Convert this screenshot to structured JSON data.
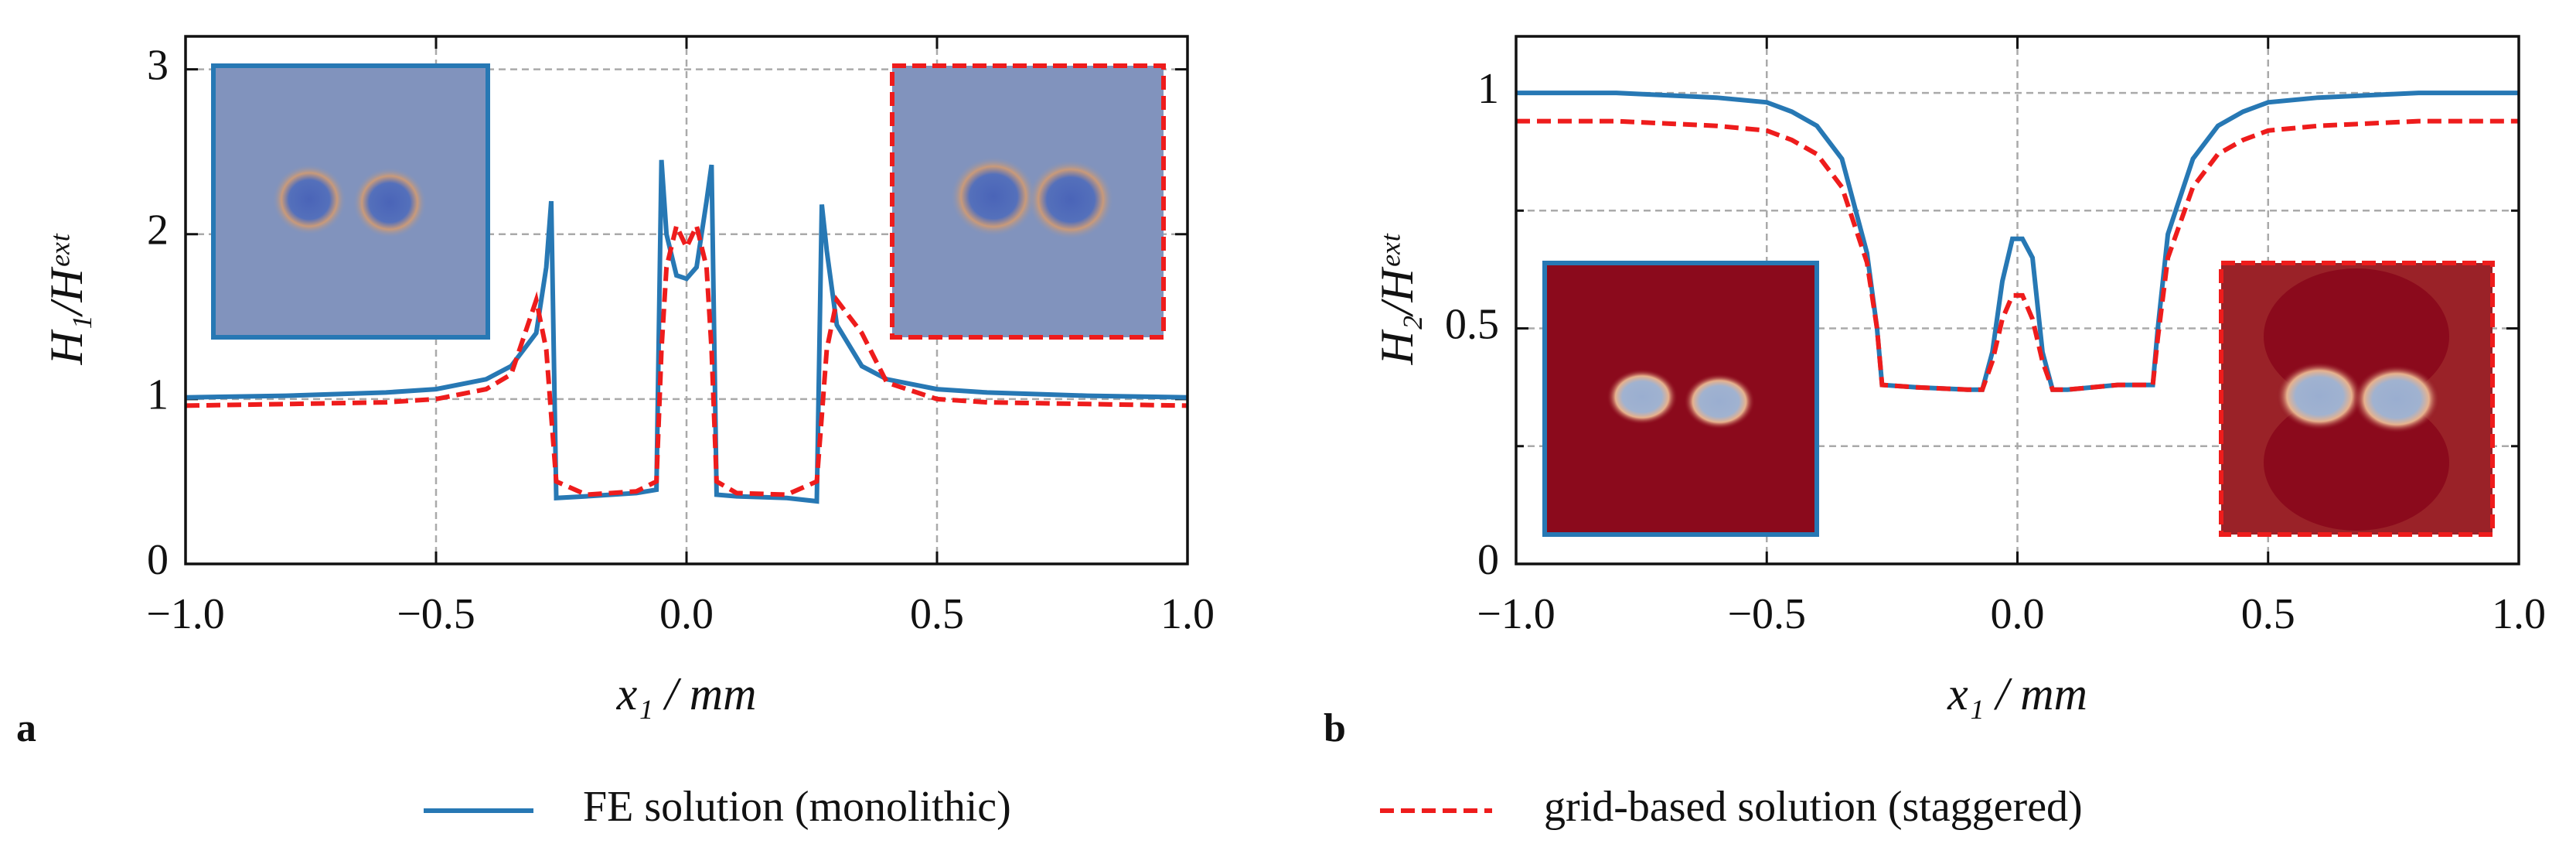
{
  "chart_data": [
    {
      "type": "line",
      "panel_label": "a",
      "x_label": "x₁ / mm",
      "y_label": "H₁/Hᵉˣᵗ",
      "x": [
        -1,
        -0.8,
        -0.6,
        -0.5,
        -0.4,
        -0.35,
        -0.3,
        -0.28,
        -0.27,
        -0.26,
        -0.2,
        -0.1,
        -0.06,
        -0.05,
        -0.04,
        -0.02,
        0,
        0.02,
        0.04,
        0.05,
        0.06,
        0.1,
        0.2,
        0.26,
        0.27,
        0.28,
        0.3,
        0.35,
        0.4,
        0.5,
        0.6,
        0.8,
        1
      ],
      "series": [
        {
          "name": "FE solution (monolithic)",
          "color": "#2778b4",
          "style": "solid",
          "values": [
            1.01,
            1.02,
            1.04,
            1.06,
            1.12,
            1.2,
            1.4,
            1.8,
            2.2,
            0.4,
            0.41,
            0.43,
            0.45,
            2.45,
            2.0,
            1.75,
            1.73,
            1.8,
            2.2,
            2.42,
            0.42,
            0.41,
            0.4,
            0.38,
            2.18,
            1.9,
            1.45,
            1.2,
            1.12,
            1.06,
            1.04,
            1.02,
            1.01
          ]
        },
        {
          "name": "grid-based solution (staggered)",
          "color": "#ee1c1c",
          "style": "dashed",
          "values": [
            0.96,
            0.97,
            0.98,
            1.0,
            1.06,
            1.15,
            1.6,
            1.3,
            0.9,
            0.5,
            0.42,
            0.44,
            0.5,
            1.3,
            1.8,
            2.05,
            1.92,
            2.05,
            1.8,
            1.3,
            0.5,
            0.43,
            0.42,
            0.5,
            0.9,
            1.3,
            1.6,
            1.4,
            1.1,
            1.0,
            0.98,
            0.97,
            0.96
          ]
        }
      ],
      "xlim": [
        -1,
        1
      ],
      "xticks": [
        {
          "value": -1,
          "label": "−1.0"
        },
        {
          "value": -0.5,
          "label": "−0.5"
        },
        {
          "value": 0,
          "label": "0.0"
        },
        {
          "value": 0.5,
          "label": "0.5"
        },
        {
          "value": 1,
          "label": "1.0"
        }
      ],
      "ylim": [
        0,
        3.2
      ],
      "yticks": [
        0,
        1,
        2,
        3
      ],
      "yminor": [],
      "grid": true
    },
    {
      "type": "line",
      "panel_label": "b",
      "x_label": "x₁ / mm",
      "y_label": "H₂/Hᵉˣᵗ",
      "x": [
        -1,
        -0.8,
        -0.6,
        -0.5,
        -0.45,
        -0.4,
        -0.35,
        -0.3,
        -0.28,
        -0.27,
        -0.2,
        -0.1,
        -0.07,
        -0.05,
        -0.03,
        -0.01,
        0.01,
        0.03,
        0.05,
        0.07,
        0.1,
        0.2,
        0.27,
        0.28,
        0.3,
        0.35,
        0.4,
        0.45,
        0.5,
        0.6,
        0.8,
        1
      ],
      "series": [
        {
          "color": "#2778b4",
          "style": "solid",
          "values": [
            1.0,
            1.0,
            0.99,
            0.98,
            0.96,
            0.93,
            0.86,
            0.66,
            0.5,
            0.38,
            0.375,
            0.37,
            0.37,
            0.45,
            0.6,
            0.69,
            0.69,
            0.65,
            0.45,
            0.37,
            0.37,
            0.38,
            0.38,
            0.5,
            0.7,
            0.86,
            0.93,
            0.96,
            0.98,
            0.99,
            1.0,
            1.0
          ]
        },
        {
          "color": "#ee1c1c",
          "style": "dashed",
          "values": [
            0.94,
            0.94,
            0.93,
            0.92,
            0.9,
            0.87,
            0.8,
            0.64,
            0.5,
            0.38,
            0.375,
            0.37,
            0.37,
            0.43,
            0.52,
            0.57,
            0.57,
            0.52,
            0.43,
            0.37,
            0.37,
            0.38,
            0.38,
            0.48,
            0.65,
            0.8,
            0.87,
            0.9,
            0.92,
            0.93,
            0.94,
            0.94
          ]
        }
      ],
      "xlim": [
        -1,
        1
      ],
      "xticks": [
        {
          "value": -1,
          "label": "−1.0"
        },
        {
          "value": -0.5,
          "label": "−0.5"
        },
        {
          "value": 0,
          "label": "0.0"
        },
        {
          "value": 0.5,
          "label": "0.5"
        },
        {
          "value": 1,
          "label": "1.0"
        }
      ],
      "ylim": [
        0,
        1.12
      ],
      "yticks": [
        0,
        0.5,
        1
      ],
      "yminor": [
        0.25,
        0.75
      ],
      "grid": true
    }
  ]
}
